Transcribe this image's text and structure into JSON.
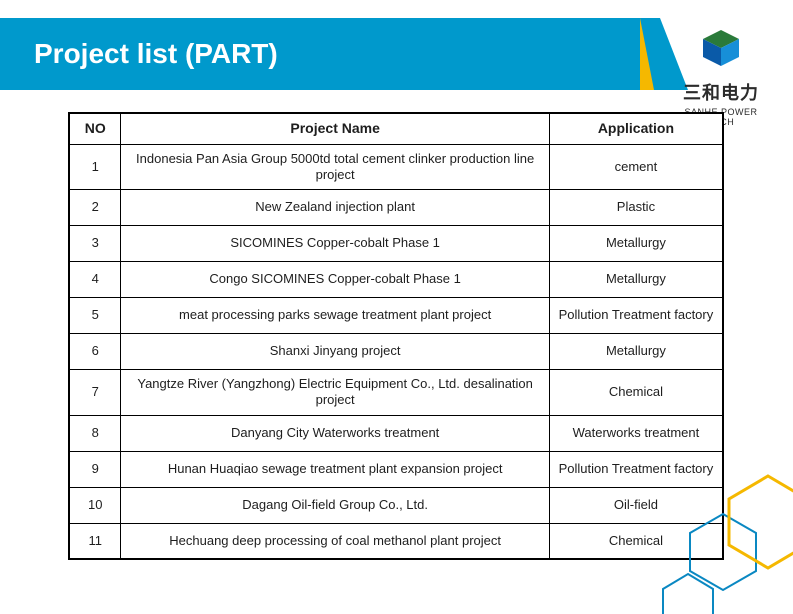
{
  "header": {
    "title": "Project list (PART)",
    "bar_color": "#0099cc",
    "accent_color": "#f5b800"
  },
  "logo": {
    "company_cn": "三和电力",
    "company_en": "SANHE POWER TECH",
    "cube_colors": {
      "top": "#2a7a3a",
      "left": "#0a5aa8",
      "right": "#178fd8"
    }
  },
  "table": {
    "columns": [
      "NO",
      "Project Name",
      "Application"
    ],
    "rows": [
      {
        "no": "1",
        "name": "Indonesia Pan Asia Group 5000td total cement clinker production line project",
        "app": "cement"
      },
      {
        "no": "2",
        "name": "New Zealand injection plant",
        "app": "Plastic"
      },
      {
        "no": "3",
        "name": "SICOMINES Copper-cobalt Phase 1",
        "app": "Metallurgy"
      },
      {
        "no": "4",
        "name": "Congo SICOMINES Copper-cobalt Phase 1",
        "app": "Metallurgy"
      },
      {
        "no": "5",
        "name": "meat processing parks sewage treatment plant project",
        "app": "Pollution Treatment factory"
      },
      {
        "no": "6",
        "name": "Shanxi Jinyang project",
        "app": "Metallurgy"
      },
      {
        "no": "7",
        "name": "Yangtze River (Yangzhong) Electric Equipment Co., Ltd. desalination project",
        "app": "Chemical"
      },
      {
        "no": "8",
        "name": "Danyang City Waterworks treatment",
        "app": "Waterworks treatment"
      },
      {
        "no": "9",
        "name": "Hunan Huaqiao sewage treatment plant expansion project",
        "app": "Pollution Treatment factory"
      },
      {
        "no": "10",
        "name": "Dagang Oil-field Group Co., Ltd.",
        "app": "Oil-field"
      },
      {
        "no": "11",
        "name": "Hechuang  deep processing of coal methanol plant project",
        "app": "Chemical"
      }
    ]
  },
  "decor": {
    "hex_blue": "#0a88c2",
    "hex_yellow": "#f5b800"
  }
}
